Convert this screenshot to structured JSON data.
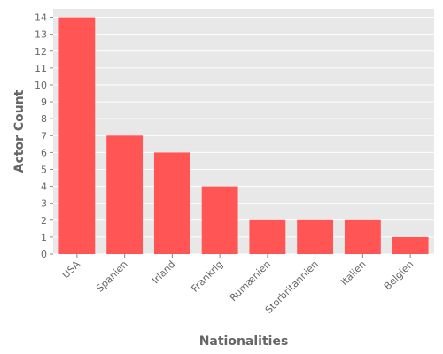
{
  "chart_data": {
    "type": "bar",
    "title": "",
    "xlabel": "Nationalities",
    "ylabel": "Actor Count",
    "categories": [
      "USA",
      "Spanien",
      "Irland",
      "Frankrig",
      "Rumænien",
      "Storbritannien",
      "Italien",
      "Belgien"
    ],
    "values": [
      14,
      7,
      6,
      4,
      2,
      2,
      2,
      1
    ],
    "ylim": [
      0,
      14.5
    ],
    "yticks": [
      0,
      1,
      2,
      3,
      4,
      5,
      6,
      7,
      8,
      9,
      10,
      11,
      12,
      13,
      14
    ],
    "grid": true,
    "legend": "none",
    "colors": {
      "bar": "#ff5555",
      "panel": "#e8e8e8",
      "grid": "#ffffff",
      "text": "#666666"
    }
  }
}
